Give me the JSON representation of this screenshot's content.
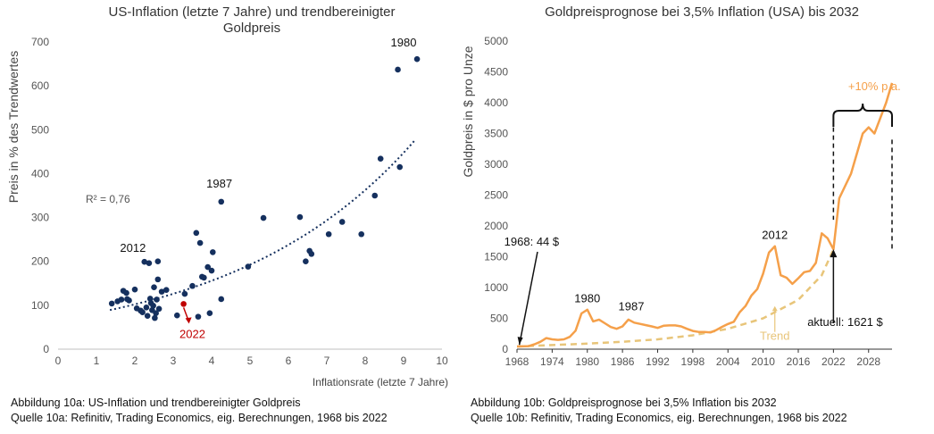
{
  "chart_data": [
    {
      "type": "scatter",
      "title_line1": "US-Inflation (letzte 7 Jahre) und trendbereinigter",
      "title_line2": "Goldpreis",
      "xlabel": "Inflationsrate (letzte 7 Jahre)",
      "ylabel": "Preis in % des Trendwertes",
      "xlim": [
        0,
        10
      ],
      "ylim": [
        0,
        700
      ],
      "xticks": [
        0,
        1,
        2,
        3,
        4,
        5,
        6,
        7,
        8,
        9,
        10
      ],
      "yticks": [
        0,
        100,
        200,
        300,
        400,
        500,
        600,
        700
      ],
      "r2_label": "R² = 0,76",
      "points": [
        [
          1.4,
          104
        ],
        [
          1.55,
          109
        ],
        [
          1.65,
          113
        ],
        [
          1.7,
          133
        ],
        [
          1.78,
          128
        ],
        [
          1.8,
          114
        ],
        [
          1.85,
          111
        ],
        [
          2.0,
          136
        ],
        [
          2.05,
          93
        ],
        [
          2.15,
          88
        ],
        [
          2.2,
          84
        ],
        [
          2.25,
          199
        ],
        [
          2.3,
          95
        ],
        [
          2.33,
          76
        ],
        [
          2.37,
          196
        ],
        [
          2.4,
          115
        ],
        [
          2.42,
          105
        ],
        [
          2.45,
          89
        ],
        [
          2.48,
          99
        ],
        [
          2.5,
          141
        ],
        [
          2.52,
          71
        ],
        [
          2.55,
          82
        ],
        [
          2.57,
          113
        ],
        [
          2.6,
          200
        ],
        [
          2.6,
          159
        ],
        [
          2.63,
          92
        ],
        [
          2.7,
          131
        ],
        [
          2.82,
          135
        ],
        [
          3.1,
          77
        ],
        [
          3.3,
          126
        ],
        [
          3.5,
          144
        ],
        [
          3.6,
          265
        ],
        [
          3.65,
          74
        ],
        [
          3.7,
          242
        ],
        [
          3.75,
          165
        ],
        [
          3.8,
          163
        ],
        [
          3.9,
          187
        ],
        [
          3.95,
          82
        ],
        [
          4.0,
          179
        ],
        [
          4.03,
          221
        ],
        [
          4.25,
          114
        ],
        [
          4.25,
          336
        ],
        [
          4.95,
          188
        ],
        [
          5.35,
          299
        ],
        [
          6.3,
          301
        ],
        [
          6.45,
          200
        ],
        [
          6.55,
          224
        ],
        [
          6.6,
          217
        ],
        [
          7.05,
          262
        ],
        [
          7.4,
          290
        ],
        [
          7.9,
          262
        ],
        [
          8.25,
          350
        ],
        [
          8.4,
          434
        ],
        [
          8.85,
          637
        ],
        [
          8.9,
          415
        ],
        [
          9.35,
          661
        ]
      ],
      "highlight_point": [
        3.27,
        103
      ],
      "trend_curve": {
        "a": 67,
        "b": 0.211,
        "from": 1.35,
        "to": 9.3
      },
      "annotations": [
        {
          "label": "1980",
          "x": 9.0,
          "y": 690
        },
        {
          "label": "1987",
          "x": 4.2,
          "y": 368
        },
        {
          "label": "2012",
          "x": 1.95,
          "y": 222
        },
        {
          "label": "2022",
          "x": 3.5,
          "y": 25
        }
      ],
      "colors": {
        "points": "#15305e",
        "highlight": "#c00000",
        "trend": "#15305e",
        "axis": "#bfbfbf"
      }
    },
    {
      "type": "line",
      "title": "Goldpreisprognose bei 3,5% Inflation (USA) bis 2032",
      "ylabel": "Goldpreis in $ pro Unze",
      "xlim": [
        1968,
        2032
      ],
      "ylim": [
        0,
        5000
      ],
      "xticks": [
        1968,
        1974,
        1980,
        1986,
        1992,
        1998,
        2004,
        2010,
        2016,
        2022,
        2028
      ],
      "yticks": [
        0,
        500,
        1000,
        1500,
        2000,
        2500,
        3000,
        3500,
        4000,
        4500,
        5000
      ],
      "series": [
        {
          "values": [
            [
              1968,
              44
            ],
            [
              1970,
              50
            ],
            [
              1971,
              80
            ],
            [
              1972,
              120
            ],
            [
              1973,
              180
            ],
            [
              1974,
              160
            ],
            [
              1975,
              150
            ],
            [
              1976,
              160
            ],
            [
              1977,
              200
            ],
            [
              1978,
              300
            ],
            [
              1979,
              580
            ],
            [
              1980,
              640
            ],
            [
              1981,
              450
            ],
            [
              1982,
              480
            ],
            [
              1983,
              420
            ],
            [
              1984,
              360
            ],
            [
              1985,
              330
            ],
            [
              1986,
              370
            ],
            [
              1987,
              480
            ],
            [
              1988,
              430
            ],
            [
              1989,
              410
            ],
            [
              1990,
              390
            ],
            [
              1991,
              370
            ],
            [
              1992,
              345
            ],
            [
              1993,
              380
            ],
            [
              1994,
              385
            ],
            [
              1995,
              385
            ],
            [
              1996,
              370
            ],
            [
              1997,
              330
            ],
            [
              1998,
              295
            ],
            [
              1999,
              280
            ],
            [
              2000,
              280
            ],
            [
              2001,
              271
            ],
            [
              2002,
              310
            ],
            [
              2003,
              363
            ],
            [
              2004,
              409
            ],
            [
              2005,
              445
            ],
            [
              2006,
              600
            ],
            [
              2007,
              700
            ],
            [
              2008,
              870
            ],
            [
              2009,
              975
            ],
            [
              2010,
              1225
            ],
            [
              2011,
              1570
            ],
            [
              2012,
              1670
            ],
            [
              2013,
              1200
            ],
            [
              2014,
              1160
            ],
            [
              2015,
              1060
            ],
            [
              2016,
              1150
            ],
            [
              2017,
              1250
            ],
            [
              2018,
              1270
            ],
            [
              2019,
              1400
            ],
            [
              2020,
              1880
            ],
            [
              2021,
              1800
            ],
            [
              2022,
              1621
            ],
            [
              2023,
              2450
            ],
            [
              2025,
              2850
            ],
            [
              2027,
              3500
            ],
            [
              2028,
              3600
            ],
            [
              2029,
              3500
            ],
            [
              2031,
              4000
            ],
            [
              2032,
              4320
            ]
          ],
          "color": "#f5a04a"
        },
        {
          "name": "Trend",
          "style": "dashed",
          "values": [
            [
              1968,
              44
            ],
            [
              1974,
              67
            ],
            [
              1980,
              90
            ],
            [
              1986,
              120
            ],
            [
              1992,
              160
            ],
            [
              1998,
              225
            ],
            [
              2004,
              330
            ],
            [
              2010,
              500
            ],
            [
              2016,
              800
            ],
            [
              2020,
              1200
            ],
            [
              2022,
              1621
            ]
          ],
          "color": "#e8c57a"
        }
      ],
      "annotations": [
        {
          "label": "1968: 44 $",
          "x": 1970.5,
          "y": 1680
        },
        {
          "label": "1980",
          "x": 1980,
          "y": 760
        },
        {
          "label": "1987",
          "x": 1987.5,
          "y": 630
        },
        {
          "label": "2012",
          "x": 2012,
          "y": 1790
        },
        {
          "label": "+10% p.a.",
          "x": 2029,
          "y": 4200
        },
        {
          "label": "Trend",
          "x": 2012,
          "y": 150
        },
        {
          "label": "aktuell: 1621 $",
          "x": 2024,
          "y": 380
        }
      ]
    }
  ],
  "captions": {
    "left_line1": "Abbildung 10a: US-Inflation und trendbereinigter Goldpreis",
    "left_line2": "Quelle 10a: Refinitiv, Trading Economics, eig. Berechnungen, 1968 bis 2022",
    "right_line1": "Abbildung 10b: Goldpreisprognose bei 3,5% Inflation bis 2032",
    "right_line2": "Quelle 10b: Refinitiv, Trading Economics, eig. Berechnungen, 1968 bis 2022"
  }
}
